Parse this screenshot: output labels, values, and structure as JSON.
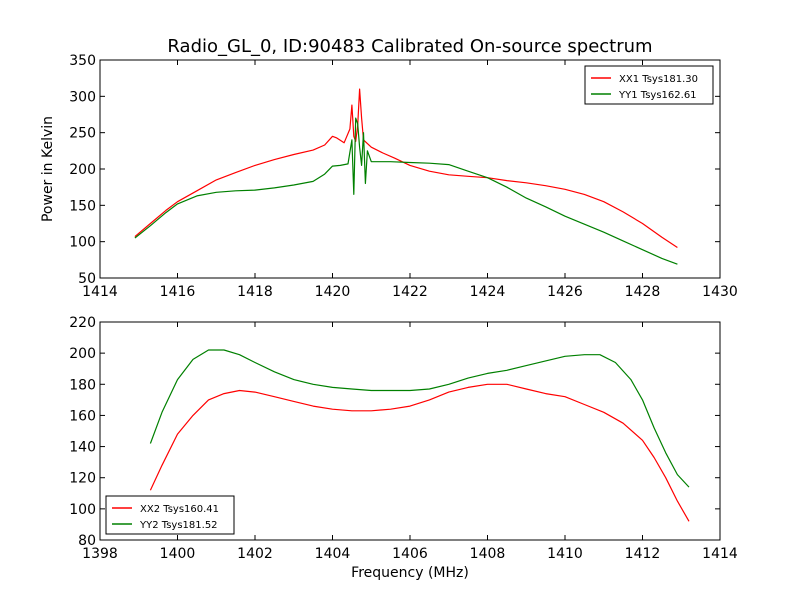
{
  "figure_title": "Radio_GL_0, ID:90483 Calibrated On-source spectrum",
  "colors": {
    "red": "#ff0000",
    "green": "#008000",
    "axes": "#000000",
    "background": "#ffffff"
  },
  "chart_data": [
    {
      "type": "line",
      "title": "Radio_GL_0, ID:90483 Calibrated On-source spectrum",
      "xlabel": "",
      "ylabel": "Power in Kelvin",
      "xlim": [
        1414,
        1430
      ],
      "ylim": [
        50,
        350
      ],
      "xticks": [
        1414,
        1416,
        1418,
        1420,
        1422,
        1424,
        1426,
        1428,
        1430
      ],
      "yticks": [
        50,
        100,
        150,
        200,
        250,
        300,
        350
      ],
      "grid": false,
      "legend_position": "top-right",
      "series": [
        {
          "name": "XX1 Tsys181.30",
          "color": "#ff0000",
          "x": [
            1414.9,
            1415.3,
            1415.7,
            1416.0,
            1416.5,
            1417.0,
            1417.5,
            1418.0,
            1418.5,
            1419.0,
            1419.5,
            1419.8,
            1420.0,
            1420.1,
            1420.3,
            1420.45,
            1420.5,
            1420.55,
            1420.6,
            1420.65,
            1420.7,
            1420.75,
            1420.8,
            1420.9,
            1421.0,
            1421.3,
            1421.6,
            1422.0,
            1422.5,
            1423.0,
            1423.5,
            1424.0,
            1424.5,
            1425.0,
            1425.5,
            1426.0,
            1426.5,
            1427.0,
            1427.5,
            1428.0,
            1428.5,
            1428.9
          ],
          "y": [
            107,
            125,
            143,
            155,
            170,
            185,
            195,
            205,
            213,
            220,
            226,
            233,
            245,
            243,
            236,
            255,
            288,
            245,
            238,
            260,
            310,
            270,
            240,
            235,
            230,
            222,
            215,
            205,
            197,
            192,
            190,
            188,
            184,
            181,
            177,
            172,
            165,
            155,
            141,
            125,
            106,
            92
          ]
        },
        {
          "name": "YY1 Tsys162.61",
          "color": "#008000",
          "x": [
            1414.9,
            1415.3,
            1415.7,
            1416.0,
            1416.5,
            1417.0,
            1417.5,
            1418.0,
            1418.5,
            1419.0,
            1419.5,
            1419.8,
            1420.0,
            1420.2,
            1420.4,
            1420.5,
            1420.55,
            1420.6,
            1420.65,
            1420.7,
            1420.75,
            1420.8,
            1420.85,
            1420.9,
            1421.0,
            1421.5,
            1422.0,
            1422.5,
            1423.0,
            1423.5,
            1424.0,
            1424.5,
            1425.0,
            1425.5,
            1426.0,
            1426.5,
            1427.0,
            1427.5,
            1428.0,
            1428.5,
            1428.9
          ],
          "y": [
            105,
            122,
            140,
            152,
            163,
            168,
            170,
            171,
            174,
            178,
            183,
            193,
            204,
            205,
            207,
            240,
            165,
            270,
            262,
            230,
            205,
            250,
            180,
            225,
            210,
            210,
            209,
            208,
            206,
            197,
            188,
            175,
            160,
            148,
            135,
            124,
            113,
            101,
            89,
            77,
            69
          ]
        }
      ]
    },
    {
      "type": "line",
      "title": "",
      "xlabel": "Frequency (MHz)",
      "ylabel": "",
      "xlim": [
        1398,
        1414
      ],
      "ylim": [
        80,
        220
      ],
      "xticks": [
        1398,
        1400,
        1402,
        1404,
        1406,
        1408,
        1410,
        1412,
        1414
      ],
      "yticks": [
        80,
        100,
        120,
        140,
        160,
        180,
        200,
        220
      ],
      "grid": false,
      "legend_position": "bottom-left",
      "series": [
        {
          "name": "XX2 Tsys160.41",
          "color": "#ff0000",
          "x": [
            1399.3,
            1399.6,
            1400.0,
            1400.4,
            1400.8,
            1401.2,
            1401.6,
            1402.0,
            1402.5,
            1403.0,
            1403.5,
            1404.0,
            1404.5,
            1405.0,
            1405.5,
            1406.0,
            1406.5,
            1407.0,
            1407.5,
            1408.0,
            1408.5,
            1409.0,
            1409.5,
            1410.0,
            1410.5,
            1411.0,
            1411.5,
            1412.0,
            1412.3,
            1412.6,
            1412.9,
            1413.2
          ],
          "y": [
            112,
            128,
            148,
            160,
            170,
            174,
            176,
            175,
            172,
            169,
            166,
            164,
            163,
            163,
            164,
            166,
            170,
            175,
            178,
            180,
            180,
            177,
            174,
            172,
            167,
            162,
            155,
            144,
            133,
            120,
            105,
            92
          ]
        },
        {
          "name": "YY2 Tsys181.52",
          "color": "#008000",
          "x": [
            1399.3,
            1399.6,
            1400.0,
            1400.4,
            1400.8,
            1401.2,
            1401.6,
            1402.0,
            1402.5,
            1403.0,
            1403.5,
            1404.0,
            1404.5,
            1405.0,
            1405.5,
            1406.0,
            1406.5,
            1407.0,
            1407.5,
            1408.0,
            1408.5,
            1409.0,
            1409.5,
            1410.0,
            1410.5,
            1410.9,
            1411.3,
            1411.7,
            1412.0,
            1412.3,
            1412.6,
            1412.9,
            1413.2
          ],
          "y": [
            142,
            162,
            183,
            196,
            202,
            202,
            199,
            194,
            188,
            183,
            180,
            178,
            177,
            176,
            176,
            176,
            177,
            180,
            184,
            187,
            189,
            192,
            195,
            198,
            199,
            199,
            194,
            183,
            170,
            152,
            136,
            122,
            114
          ]
        }
      ]
    }
  ]
}
